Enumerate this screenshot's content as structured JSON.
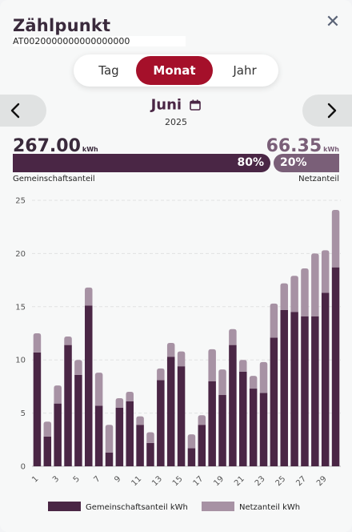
{
  "header": {
    "title": "Zählpunkt",
    "meter_id": "AT0020000000000000000",
    "close_glyph": "✕"
  },
  "tabs": [
    {
      "label": "Tag",
      "selected": false
    },
    {
      "label": "Monat",
      "selected": true
    },
    {
      "label": "Jahr",
      "selected": false
    }
  ],
  "period": {
    "month": "Juni",
    "year": "2025",
    "calendar_icon": "calendar-icon",
    "prev_icon": "chevron-left-icon",
    "next_icon": "chevron-right-icon"
  },
  "summary": {
    "community_value": "267.00",
    "community_unit": "kWh",
    "grid_value": "66.35",
    "grid_unit": "kWh",
    "community_percent": "80%",
    "grid_percent": "20%",
    "community_fraction": 0.8,
    "community_label": "Gemeinschaftsanteil",
    "grid_label": "Netzanteil"
  },
  "colors": {
    "accent": "#a5102a",
    "community": "#4a2645",
    "grid": "#a792a4",
    "grid_bar": "#7a5f78"
  },
  "chart_data": {
    "type": "bar",
    "stacked": true,
    "x": [
      1,
      2,
      3,
      4,
      5,
      6,
      7,
      8,
      9,
      10,
      11,
      12,
      13,
      14,
      15,
      16,
      17,
      18,
      19,
      20,
      21,
      22,
      23,
      24,
      25,
      26,
      27,
      28,
      29,
      30
    ],
    "x_tick_labels": [
      "1",
      "3",
      "5",
      "7",
      "9",
      "11",
      "13",
      "15",
      "17",
      "19",
      "21",
      "23",
      "25",
      "27",
      "29"
    ],
    "ylim": [
      0,
      25
    ],
    "y_ticks": [
      0,
      5,
      10,
      15,
      20,
      25
    ],
    "grid": true,
    "legend_position": "bottom",
    "series": [
      {
        "name": "Gemeinschaftsanteil kWh",
        "color": "#4a2645",
        "values": [
          10.7,
          2.8,
          5.9,
          11.4,
          8.6,
          15.1,
          5.7,
          1.3,
          5.5,
          6.1,
          3.9,
          2.2,
          8.1,
          10.3,
          9.4,
          1.7,
          3.9,
          8.0,
          6.7,
          11.4,
          8.9,
          7.3,
          6.9,
          12.1,
          14.7,
          14.5,
          14.1,
          14.1,
          16.3,
          18.7
        ]
      },
      {
        "name": "Netzanteil kWh",
        "color": "#a792a4",
        "values": [
          1.8,
          1.4,
          1.7,
          0.8,
          1.4,
          1.7,
          3.1,
          2.6,
          0.9,
          0.9,
          0.8,
          1.0,
          1.1,
          1.3,
          1.4,
          1.3,
          0.9,
          3.0,
          2.4,
          1.5,
          1.1,
          1.2,
          2.9,
          3.2,
          2.5,
          3.4,
          4.5,
          5.9,
          4.0,
          5.4
        ]
      }
    ]
  }
}
